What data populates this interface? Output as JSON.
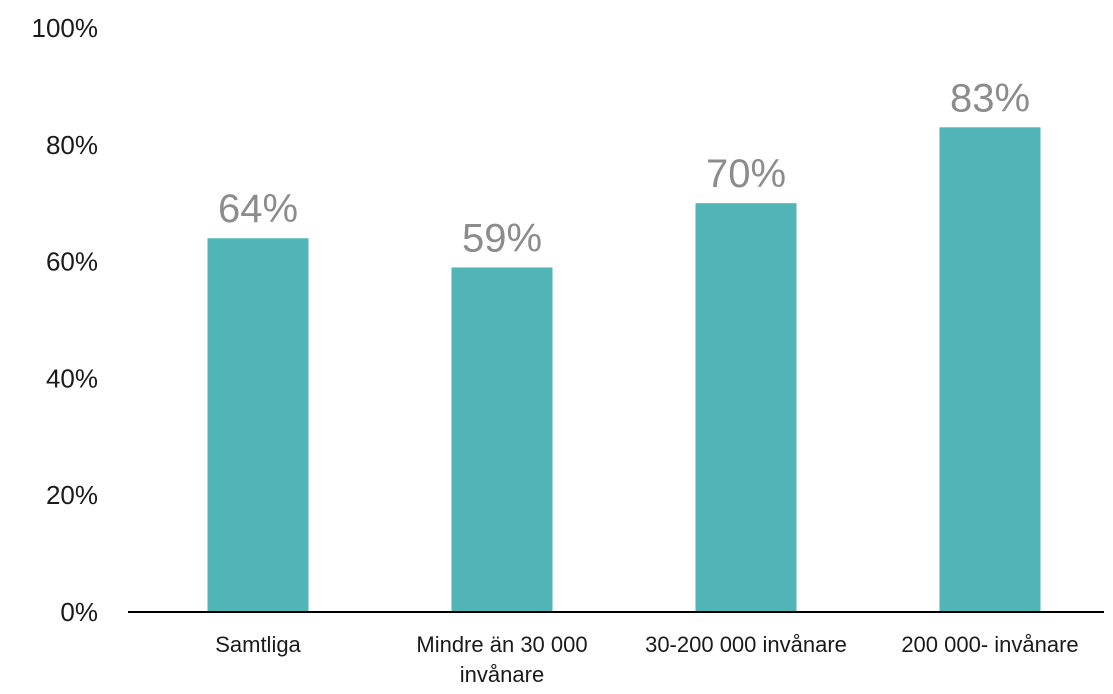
{
  "chart_data": {
    "type": "bar",
    "title": "",
    "xlabel": "",
    "ylabel": "",
    "categories": [
      [
        "Samtliga"
      ],
      [
        "Mindre än 30 000",
        "invånare"
      ],
      [
        "30-200 000 invånare"
      ],
      [
        "200 000- invånare"
      ]
    ],
    "values": [
      64,
      59,
      70,
      83
    ],
    "data_labels": [
      "64%",
      "59%",
      "70%",
      "83%"
    ],
    "ylim": [
      0,
      100
    ],
    "yticks": [
      0,
      20,
      40,
      60,
      80,
      100
    ],
    "ytick_labels": [
      "0%",
      "20%",
      "40%",
      "60%",
      "80%",
      "100%"
    ],
    "grid": false,
    "legend": "none",
    "bar_color": "#51b5b8",
    "data_label_color": "#8c8c8c",
    "axis_color": "#000000"
  }
}
